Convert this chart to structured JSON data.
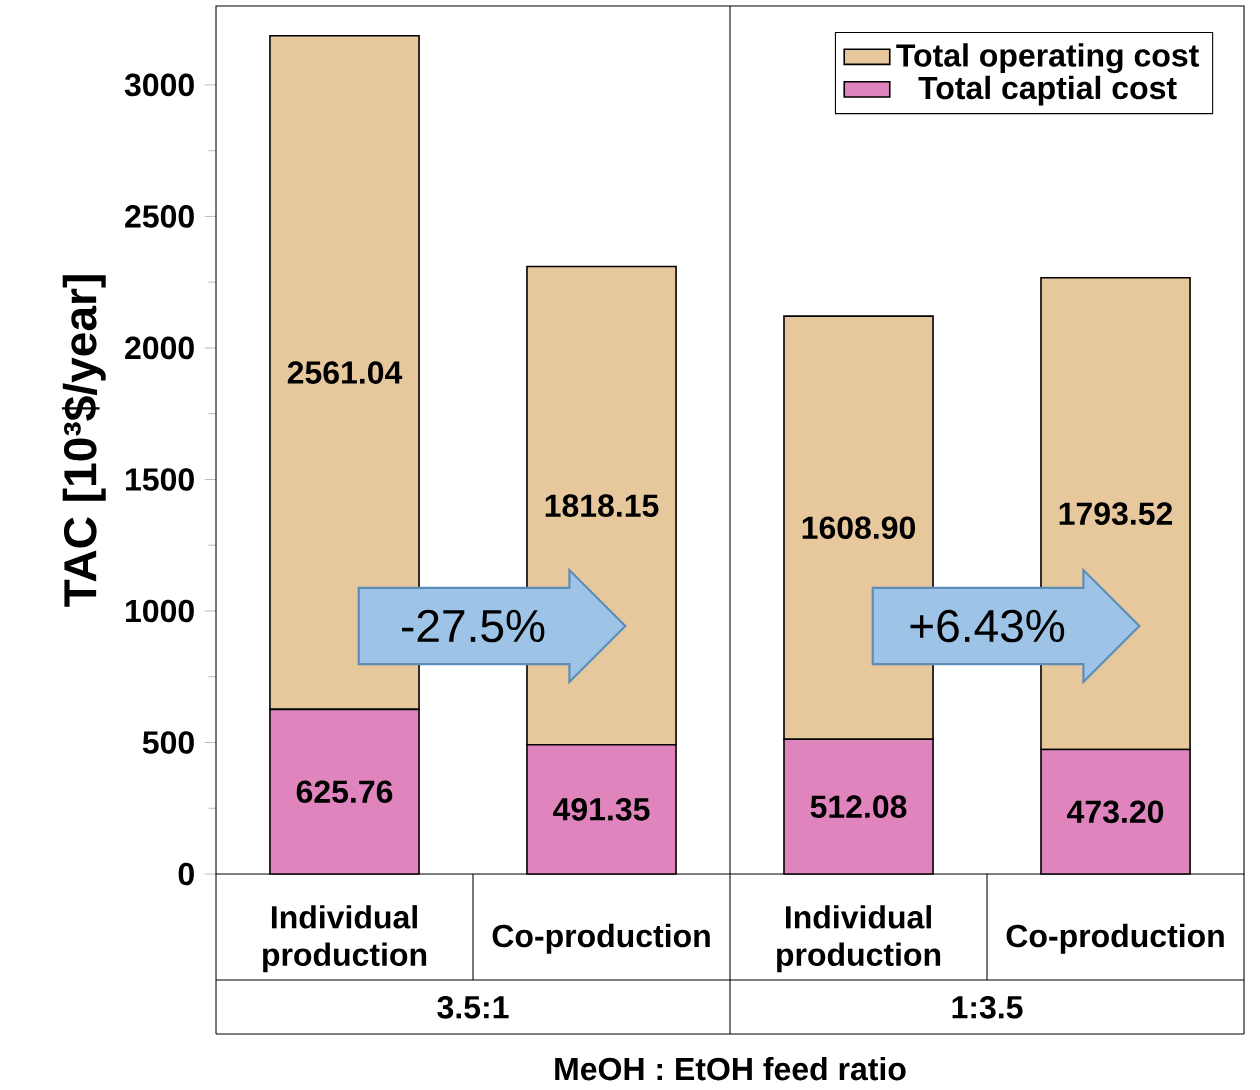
{
  "chart_data": {
    "type": "bar",
    "stacked": true,
    "ylabel": "TAC [10³$/year]",
    "xlabel": "MeOH : EtOH feed ratio",
    "categories": [
      "Individual production",
      "Co-production",
      "Individual production",
      "Co-production"
    ],
    "series": [
      {
        "name": "Total captial cost",
        "color": "#e084be",
        "values": [
          625.76,
          491.35,
          512.08,
          473.2
        ],
        "value_labels": [
          "625.76",
          "491.35",
          "512.08",
          "473.20"
        ]
      },
      {
        "name": "Total operating cost",
        "color": "#e6c89c",
        "values": [
          2561.04,
          1818.15,
          1608.9,
          1793.52
        ],
        "value_labels": [
          "2561.04",
          "1818.15",
          "1608.90",
          "1793.52"
        ]
      }
    ],
    "ylim": [
      0,
      3300
    ],
    "yticks": [
      0,
      500,
      1000,
      1500,
      2000,
      2500,
      3000
    ],
    "legend": "top right",
    "annotations": [
      "-27.5%",
      "+6.43%",
      "3.5:1",
      "1:3.5"
    ]
  }
}
